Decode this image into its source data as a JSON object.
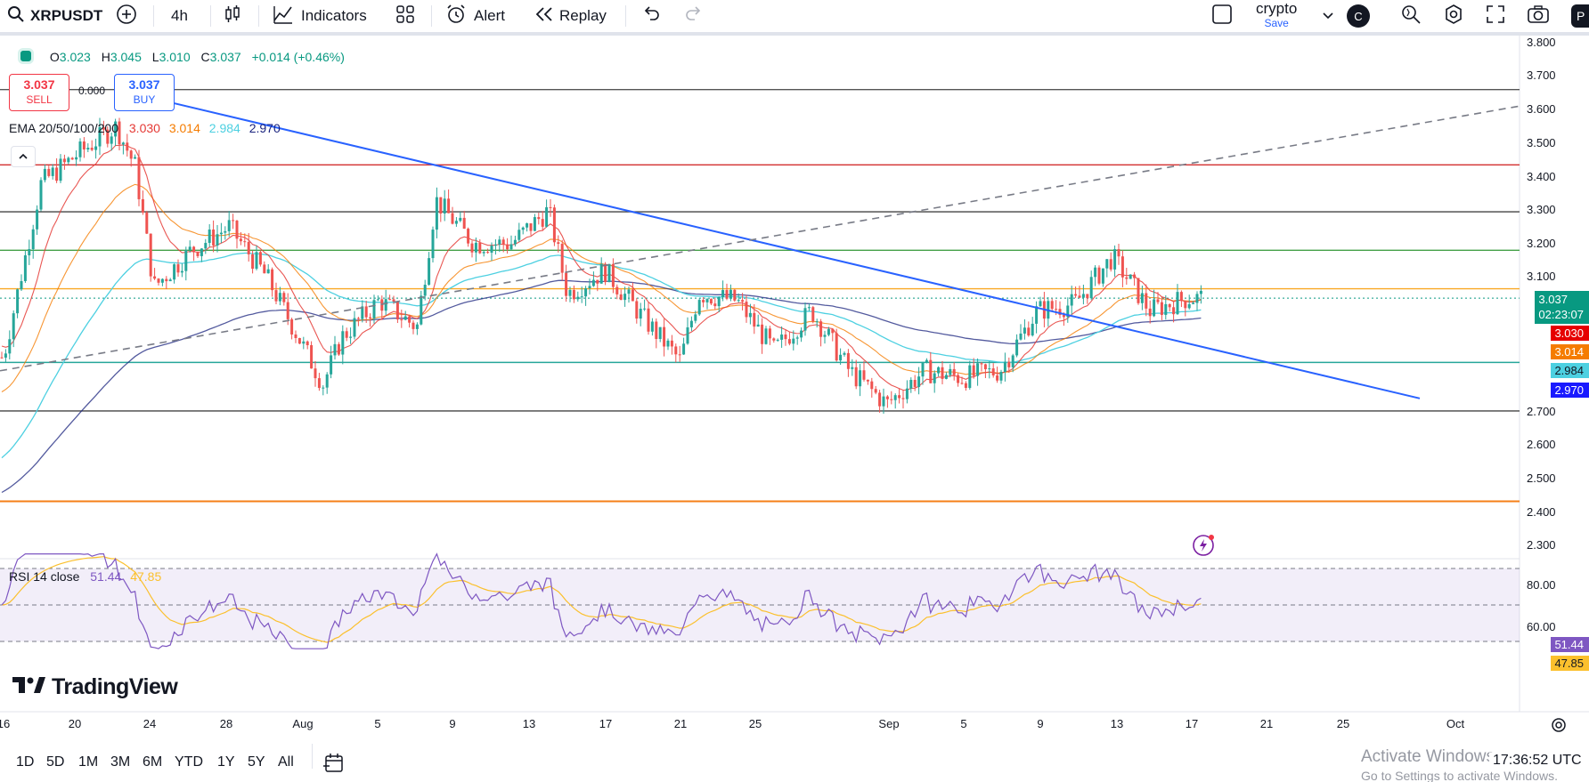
{
  "toolbar": {
    "symbol": "XRPUSDT",
    "interval": "4h",
    "indicators_label": "Indicators",
    "alert_label": "Alert",
    "replay_label": "Replay",
    "layout_name": "crypto",
    "layout_status": "Save",
    "avatar_letter": "C",
    "profile_letter": "P"
  },
  "legend": {
    "open_label": "O",
    "open": "3.023",
    "high_label": "H",
    "high": "3.045",
    "low_label": "L",
    "low": "3.010",
    "close_label": "C",
    "close": "3.037",
    "change": "+0.014 (+0.46%)"
  },
  "trade": {
    "sell_price": "3.037",
    "sell_label": "SELL",
    "buy_price": "3.037",
    "buy_label": "BUY",
    "fib_label": "0.000"
  },
  "ema": {
    "label": "EMA 20/50/100/200",
    "v20": "3.030",
    "v50": "3.014",
    "v100": "2.984",
    "v200": "2.970",
    "c20": "#e53935",
    "c50": "#f57c00",
    "c100": "#4dd0e1",
    "c200": "#1a237e"
  },
  "rsi": {
    "label": "RSI 14 close",
    "value": "51.44",
    "ma": "47.85",
    "c_value": "#7e57c2",
    "c_ma": "#fbc02d"
  },
  "price_axis": {
    "ticks": [
      "3.800",
      "3.700",
      "3.600",
      "3.500",
      "3.400",
      "3.300",
      "3.200",
      "3.100",
      "2.700",
      "2.600",
      "2.500",
      "2.400",
      "2.300"
    ],
    "last_price": "3.037",
    "countdown": "02:23:07",
    "rsi_ticks": [
      "80.00",
      "60.00"
    ]
  },
  "time_axis": {
    "ticks": [
      "16",
      "20",
      "24",
      "28",
      "Aug",
      "5",
      "9",
      "13",
      "17",
      "21",
      "25",
      "Sep",
      "5",
      "9",
      "13",
      "17",
      "21",
      "25",
      "Oct"
    ]
  },
  "ranges": [
    "1D",
    "5D",
    "1M",
    "3M",
    "6M",
    "YTD",
    "1Y",
    "5Y",
    "All"
  ],
  "clock": "17:36:52 UTC",
  "watermark": {
    "brand": "TradingView",
    "activate_title": "Activate Windows",
    "activate_sub": "Go to Settings to activate Windows."
  },
  "colors": {
    "up": "#26a69a",
    "down": "#ef5350",
    "trend": "#2962ff",
    "red_level": "#d32f2f",
    "green_level": "#43a047",
    "yellow_level": "#f9a825",
    "teal_level": "#26a69a",
    "orange_level": "#f57f17",
    "last_price_bg": "#089981"
  },
  "chart_data": {
    "type": "candlestick",
    "symbol": "XRPUSDT",
    "interval": "4h",
    "y_range": [
      2.25,
      3.84
    ],
    "x_range_labels": [
      "16",
      "Oct"
    ],
    "horizontal_levels": [
      3.66,
      3.435,
      3.295,
      3.18,
      3.065,
      2.845,
      2.7,
      2.43
    ],
    "trendline_down": [
      {
        "x": "Jul 22",
        "y": 3.66
      },
      {
        "x": "Oct 1",
        "y": 2.78
      }
    ],
    "trendline_up_dashed": [
      {
        "x": "Jul 16",
        "y": 2.82
      },
      {
        "x": "Oct 1",
        "y": 3.6
      }
    ],
    "close_path": [
      {
        "x": "Jul 16",
        "y": 2.86
      },
      {
        "x": "Jul 18",
        "y": 3.38
      },
      {
        "x": "Jul 20",
        "y": 3.47
      },
      {
        "x": "Jul 22",
        "y": 3.55
      },
      {
        "x": "Jul 23",
        "y": 3.43
      },
      {
        "x": "Jul 24",
        "y": 3.07
      },
      {
        "x": "Jul 26",
        "y": 3.18
      },
      {
        "x": "Jul 28",
        "y": 3.25
      },
      {
        "x": "Jul 30",
        "y": 3.1
      },
      {
        "x": "Aug 2",
        "y": 2.78
      },
      {
        "x": "Aug 3",
        "y": 2.92
      },
      {
        "x": "Aug 5",
        "y": 3.03
      },
      {
        "x": "Aug 7",
        "y": 2.95
      },
      {
        "x": "Aug 8",
        "y": 3.33
      },
      {
        "x": "Aug 10",
        "y": 3.2
      },
      {
        "x": "Aug 12",
        "y": 3.2
      },
      {
        "x": "Aug 14",
        "y": 3.3
      },
      {
        "x": "Aug 15",
        "y": 3.05
      },
      {
        "x": "Aug 17",
        "y": 3.12
      },
      {
        "x": "Aug 19",
        "y": 2.98
      },
      {
        "x": "Aug 21",
        "y": 2.85
      },
      {
        "x": "Aug 22",
        "y": 3.05
      },
      {
        "x": "Aug 24",
        "y": 3.03
      },
      {
        "x": "Aug 26",
        "y": 2.88
      },
      {
        "x": "Aug 28",
        "y": 3.0
      },
      {
        "x": "Aug 30",
        "y": 2.82
      },
      {
        "x": "Sep 1",
        "y": 2.72
      },
      {
        "x": "Sep 3",
        "y": 2.82
      },
      {
        "x": "Sep 5",
        "y": 2.8
      },
      {
        "x": "Sep 7",
        "y": 2.82
      },
      {
        "x": "Sep 9",
        "y": 3.0
      },
      {
        "x": "Sep 11",
        "y": 3.02
      },
      {
        "x": "Sep 13",
        "y": 3.16
      },
      {
        "x": "Sep 15",
        "y": 3.0
      },
      {
        "x": "Sep 17",
        "y": 3.037
      }
    ],
    "ema_values_last": {
      "ema20": 3.03,
      "ema50": 3.014,
      "ema100": 2.984,
      "ema200": 2.97
    },
    "rsi": {
      "length": 14,
      "source": "close",
      "last": 51.44,
      "ma_last": 47.85,
      "bands": [
        70,
        50,
        30
      ]
    }
  }
}
